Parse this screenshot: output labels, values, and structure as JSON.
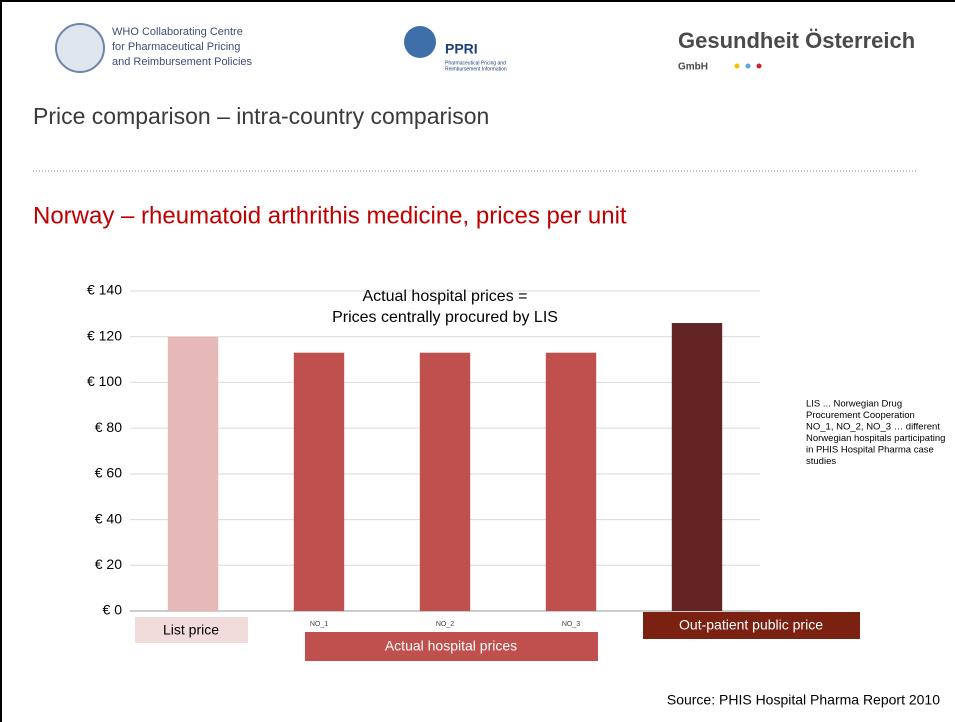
{
  "header": {
    "who": [
      "WHO Collaborating Centre",
      "for Pharmaceutical Pricing",
      "and Reimbursement Policies"
    ],
    "ppri": "PPRI",
    "ppri_sub": [
      "Pharmaceutical Pricing and",
      "Reimbursement Information"
    ],
    "goeg": "Gesundheit Österreich",
    "goeg_sub": "GmbH"
  },
  "title": "Price comparison – intra-country comparison",
  "chart_data": {
    "type": "bar",
    "title": "Norway – rheumatoid arthrithis medicine, prices per unit",
    "categories": [
      null,
      "NO_1",
      "NO_2",
      "NO_3",
      null
    ],
    "values": [
      120,
      113,
      113,
      113,
      126
    ],
    "colors": [
      "#e6b9b8",
      "#c0504d",
      "#c0504d",
      "#c0504d",
      "#632523"
    ],
    "ylim": [
      0,
      140
    ],
    "yticks": [
      {
        "value": 0,
        "label": "€ 0"
      },
      {
        "value": 20,
        "label": "€ 20"
      },
      {
        "value": 40,
        "label": "€ 40"
      },
      {
        "value": 60,
        "label": "€ 60"
      },
      {
        "value": 80,
        "label": "€ 80"
      },
      {
        "value": 100,
        "label": "€ 100"
      },
      {
        "value": 120,
        "label": "€ 120"
      },
      {
        "value": 140,
        "label": "€ 140"
      }
    ],
    "grid": true,
    "annotation": [
      "Actual hospital prices =",
      "Prices centrally procured by LIS"
    ],
    "group_labels": [
      "List price",
      "Actual hospital prices",
      "Out-patient  public price"
    ]
  },
  "note": [
    "LIS ... Norwegian Drug",
    "Procurement Cooperation",
    "NO_1, NO_2, NO_3 … different",
    "Norwegian hospitals participating",
    "in PHIS Hospital Pharma case",
    "studies"
  ],
  "source": "Source: PHIS Hospital Pharma Report  2010"
}
